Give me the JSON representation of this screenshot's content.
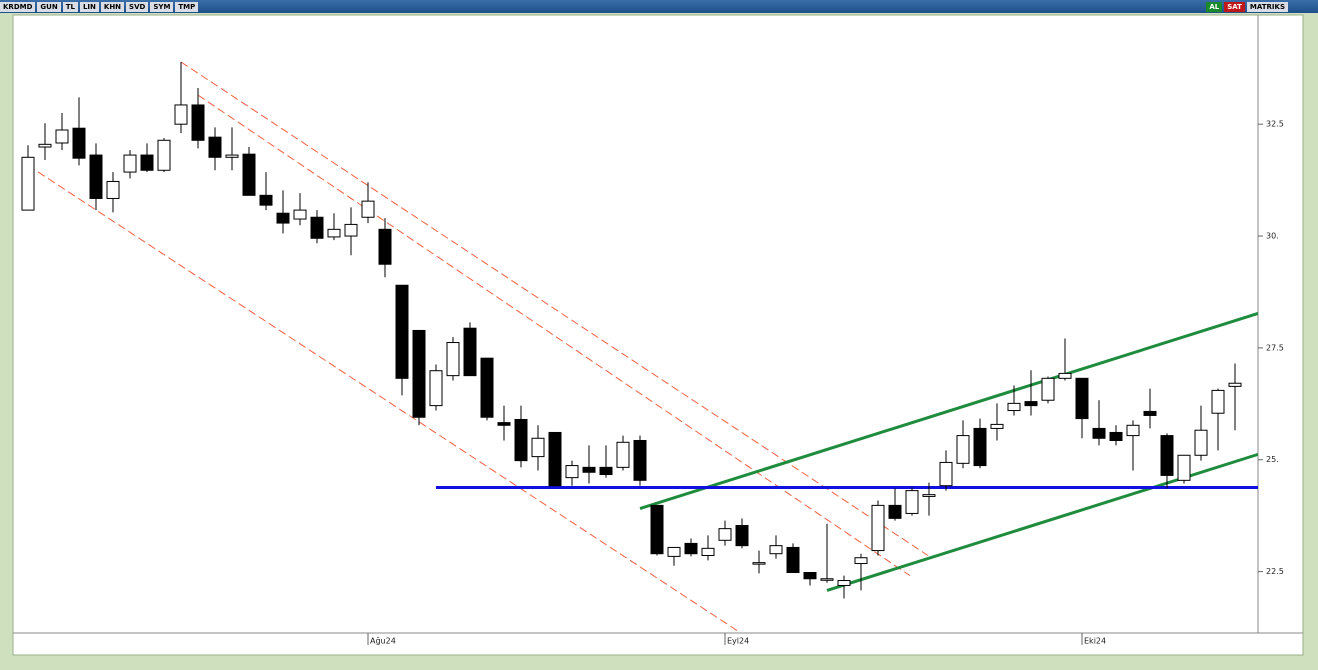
{
  "toolbar": {
    "symbol": "KRDMD",
    "buttons": [
      "GUN",
      "TL",
      "LIN",
      "KHN",
      "SVD",
      "SYM",
      "TMP"
    ],
    "buy": "AL",
    "sell": "SAT",
    "brand": "MATRIKS"
  },
  "chart_data": {
    "type": "candlestick",
    "categories": [
      null,
      null,
      null,
      null,
      null,
      null,
      null,
      null,
      null,
      null,
      null,
      null,
      null,
      null,
      null,
      null,
      null,
      null,
      null,
      null,
      "Ağu24",
      null,
      null,
      null,
      null,
      null,
      null,
      null,
      null,
      null,
      null,
      null,
      null,
      null,
      null,
      null,
      null,
      null,
      null,
      null,
      null,
      "Eyl24",
      null,
      null,
      null,
      null,
      null,
      null,
      null,
      null,
      null,
      null,
      null,
      null,
      null,
      null,
      null,
      null,
      null,
      null,
      null,
      null,
      "Eki24",
      null,
      null,
      null,
      null,
      null,
      null,
      null,
      null,
      null
    ],
    "open": [
      30.58,
      31.99,
      32.08,
      32.41,
      31.81,
      30.84,
      31.43,
      31.81,
      31.47,
      32.5,
      32.93,
      32.21,
      31.76,
      31.83,
      30.91,
      30.51,
      30.38,
      30.42,
      29.98,
      30.0,
      30.42,
      30.15,
      28.9,
      27.89,
      26.21,
      26.88,
      27.94,
      27.27,
      25.83,
      25.9,
      25.07,
      25.61,
      24.6,
      24.83,
      24.83,
      24.83,
      25.43,
      23.98,
      22.84,
      23.13,
      22.86,
      23.2,
      23.53,
      22.68,
      22.9,
      23.04,
      22.48,
      22.32,
      22.19,
      22.68,
      22.97,
      23.98,
      23.8,
      24.18,
      24.42,
      24.92,
      25.7,
      25.7,
      26.1,
      26.3,
      26.33,
      26.82,
      26.82,
      25.7,
      25.61,
      25.54,
      26.08,
      25.54,
      24.54,
      25.1,
      26.04,
      26.64
    ],
    "high": [
      32.03,
      32.52,
      32.75,
      33.1,
      32.07,
      31.43,
      31.92,
      32.07,
      32.19,
      33.89,
      33.31,
      32.43,
      32.43,
      31.99,
      31.43,
      31.02,
      30.96,
      30.58,
      30.51,
      30.64,
      31.2,
      30.4,
      28.9,
      27.89,
      27.13,
      27.74,
      28.07,
      27.27,
      26.21,
      26.21,
      25.77,
      25.61,
      24.98,
      25.32,
      25.32,
      25.54,
      25.54,
      23.98,
      23.04,
      23.24,
      23.31,
      23.64,
      23.69,
      22.97,
      23.31,
      23.13,
      22.48,
      23.57,
      22.41,
      22.9,
      24.09,
      24.36,
      24.38,
      24.49,
      25.21,
      25.88,
      25.92,
      26.26,
      26.66,
      27.0,
      26.86,
      27.71,
      26.82,
      26.33,
      25.77,
      25.88,
      26.59,
      25.59,
      25.1,
      26.21,
      26.59,
      27.15
    ],
    "low": [
      30.58,
      31.7,
      31.92,
      31.58,
      30.58,
      30.53,
      31.29,
      31.43,
      31.43,
      32.3,
      31.96,
      31.47,
      31.47,
      30.91,
      30.58,
      30.06,
      30.24,
      29.84,
      29.91,
      29.57,
      30.29,
      29.08,
      26.44,
      25.77,
      26.1,
      26.77,
      26.88,
      25.88,
      25.43,
      24.83,
      24.76,
      24.42,
      24.42,
      24.47,
      24.6,
      24.76,
      24.42,
      22.86,
      22.63,
      22.84,
      22.75,
      23.08,
      23.02,
      22.46,
      22.79,
      22.48,
      22.19,
      22.25,
      21.9,
      22.08,
      22.86,
      23.64,
      23.75,
      23.75,
      24.31,
      24.81,
      24.81,
      25.43,
      25.99,
      25.99,
      26.26,
      26.77,
      25.48,
      25.32,
      25.32,
      24.76,
      25.7,
      24.36,
      24.47,
      24.98,
      25.21,
      25.66
    ],
    "close": [
      31.76,
      32.05,
      32.37,
      31.74,
      30.84,
      31.22,
      31.81,
      31.47,
      32.14,
      32.93,
      32.14,
      31.76,
      31.81,
      30.91,
      30.69,
      30.29,
      30.58,
      29.95,
      30.15,
      30.26,
      30.78,
      29.37,
      26.82,
      25.95,
      26.99,
      27.62,
      26.88,
      25.95,
      25.77,
      24.98,
      25.48,
      24.42,
      24.87,
      24.72,
      24.67,
      25.39,
      24.54,
      22.9,
      23.04,
      22.9,
      23.02,
      23.46,
      23.08,
      22.7,
      23.08,
      22.48,
      22.34,
      22.34,
      22.3,
      22.81,
      23.98,
      23.69,
      24.31,
      24.22,
      24.94,
      25.54,
      24.87,
      25.79,
      26.26,
      26.21,
      26.82,
      26.93,
      25.92,
      25.48,
      25.43,
      25.77,
      25.99,
      24.65,
      25.1,
      25.66,
      26.55,
      26.71
    ],
    "up_color": "#ffffff",
    "down_color": "#000000",
    "ylim": [
      21.15,
      34.65
    ],
    "yticks": [
      22.5,
      {
        "value": 25,
        "label": "25."
      },
      27.5,
      {
        "value": 30,
        "label": "30."
      },
      32.5
    ],
    "lines": [
      {
        "x": [
          0,
          41.88
        ],
        "y": [
          31.58,
          21.14
        ],
        "color": "#f06040",
        "dashed": true
      },
      {
        "x": [
          9,
          52.94
        ],
        "y": [
          33.89,
          22.86
        ],
        "color": "#f06040",
        "dashed": true
      },
      {
        "x": [
          10,
          51.88
        ],
        "y": [
          33.15,
          22.41
        ],
        "color": "#f06040",
        "dashed": true
      },
      {
        "x": [
          36,
          72.35
        ],
        "y": [
          23.91,
          28.27
        ],
        "color": "#1e8c3c",
        "dashed": false
      },
      {
        "x": [
          47,
          72.35
        ],
        "y": [
          22.08,
          25.12
        ],
        "color": "#1e8c3c",
        "dashed": false
      },
      {
        "x": [
          24,
          72.35
        ],
        "y": [
          24.38,
          24.38
        ],
        "color": "#1010e0",
        "dashed": false
      }
    ]
  }
}
